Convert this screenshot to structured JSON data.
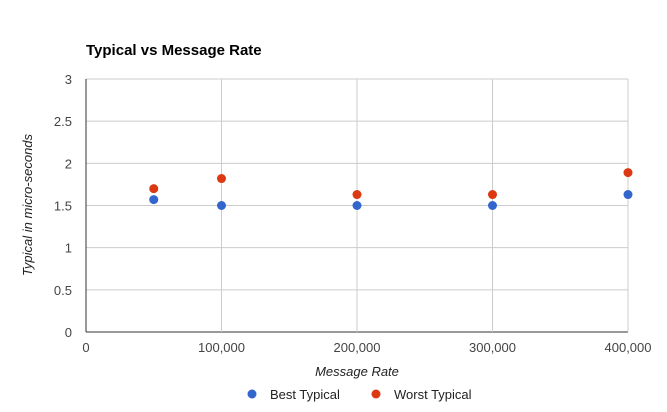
{
  "chart_data": {
    "type": "scatter",
    "title": "Typical vs Message Rate",
    "xlabel": "Message Rate",
    "ylabel": "Typical in micro-seconds",
    "xlim": [
      0,
      400000
    ],
    "ylim": [
      0,
      3
    ],
    "x_ticks": [
      "0",
      "100,000",
      "200,000",
      "300,000",
      "400,000"
    ],
    "y_ticks": [
      "0",
      "0.5",
      "1",
      "1.5",
      "2",
      "2.5",
      "3"
    ],
    "grid": true,
    "legend_position": "bottom",
    "series": [
      {
        "name": "Best Typical",
        "color": "#3366cc",
        "points": [
          {
            "x": 50000,
            "y": 1.57
          },
          {
            "x": 100000,
            "y": 1.5
          },
          {
            "x": 200000,
            "y": 1.5
          },
          {
            "x": 300000,
            "y": 1.5
          },
          {
            "x": 400000,
            "y": 1.63
          }
        ]
      },
      {
        "name": "Worst Typical",
        "color": "#dc3912",
        "points": [
          {
            "x": 50000,
            "y": 1.7
          },
          {
            "x": 100000,
            "y": 1.82
          },
          {
            "x": 200000,
            "y": 1.63
          },
          {
            "x": 300000,
            "y": 1.63
          },
          {
            "x": 400000,
            "y": 1.89
          }
        ]
      }
    ]
  }
}
